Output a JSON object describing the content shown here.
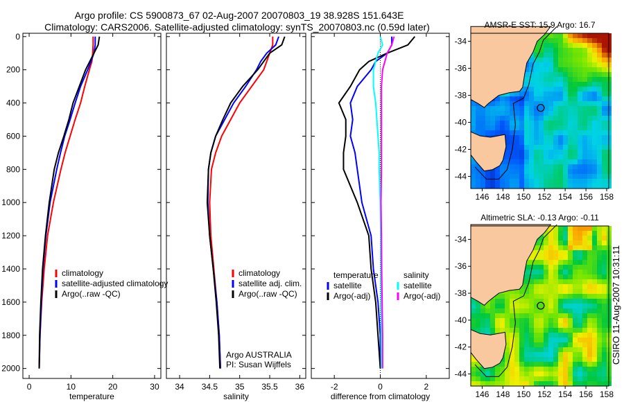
{
  "title_line1": "Argo profile: CS 5900873_67 02-Aug-2007 20070803_19 38.928S 151.643E",
  "title_line2": "Climatology: CARS2006. Satellite-adjusted climatology: synTS_20070803.nc (0.59d later)",
  "footer_stamp": "CSIRO 11-Aug-2007 10:31:11",
  "colors": {
    "climatology": "#ff0000",
    "satellite": "#0000ff",
    "argo": "#000000",
    "sal_satellite": "#00ffff",
    "sal_argo": "#ff00ff",
    "land": "#f9c89f"
  },
  "chart_data": [
    {
      "type": "line",
      "id": "temperature",
      "xlabel": "temperature",
      "ylabel": "",
      "xlim": [
        -1.5,
        31.5
      ],
      "ylim": [
        2060,
        -20
      ],
      "xticks": [
        0,
        10,
        20,
        30
      ],
      "yticks": [
        0,
        200,
        400,
        600,
        800,
        1000,
        1200,
        1400,
        1600,
        1800,
        2000
      ],
      "depth": [
        0,
        50,
        100,
        150,
        200,
        300,
        400,
        500,
        600,
        700,
        800,
        1000,
        1200,
        1400,
        1600,
        1800,
        2000
      ],
      "series": [
        {
          "name": "climatology",
          "color": "#ff0000",
          "values": [
            15.3,
            15.3,
            15.2,
            15.0,
            14.4,
            13.3,
            12.3,
            11.0,
            9.8,
            8.6,
            7.6,
            5.8,
            4.4,
            3.6,
            3.0,
            2.6,
            2.4
          ]
        },
        {
          "name": "satellite-adjusted climatology",
          "color": "#0000ff",
          "values": [
            15.8,
            15.8,
            15.5,
            14.8,
            14.0,
            12.3,
            11.0,
            9.8,
            8.5,
            7.5,
            6.6,
            5.0,
            4.0,
            3.3,
            2.9,
            2.6,
            2.4
          ]
        },
        {
          "name": "Argo(..raw -QC)",
          "color": "#000000",
          "values": [
            16.8,
            16.5,
            15.5,
            14.5,
            13.5,
            12.0,
            10.5,
            9.5,
            8.3,
            7.0,
            6.0,
            4.8,
            3.9,
            3.2,
            2.8,
            2.5,
            2.4
          ]
        }
      ],
      "legend": "center-right"
    },
    {
      "type": "line",
      "id": "salinity",
      "xlabel": "salinity",
      "xlim": [
        33.78,
        36.1
      ],
      "ylim": [
        2060,
        -20
      ],
      "xticks": [
        34,
        34.5,
        35,
        35.5,
        36
      ],
      "yticks": [],
      "depth": [
        0,
        50,
        100,
        150,
        200,
        300,
        400,
        500,
        600,
        700,
        800,
        1000,
        1200,
        1400,
        1600,
        1800,
        2000
      ],
      "series": [
        {
          "name": "climatology",
          "color": "#ff0000",
          "values": [
            35.55,
            35.55,
            35.5,
            35.45,
            35.4,
            35.2,
            35.0,
            34.85,
            34.7,
            34.6,
            34.53,
            34.5,
            34.52,
            34.57,
            34.62,
            34.66,
            34.68
          ]
        },
        {
          "name": "satellite adj. clim.",
          "color": "#0000ff",
          "values": [
            35.65,
            35.6,
            35.45,
            35.35,
            35.28,
            35.1,
            34.9,
            34.75,
            34.6,
            34.52,
            34.48,
            34.47,
            34.5,
            34.56,
            34.62,
            34.66,
            34.68
          ]
        },
        {
          "name": "Argo(..raw -QC)",
          "color": "#000000",
          "values": [
            35.75,
            35.7,
            35.5,
            35.4,
            35.3,
            35.05,
            34.85,
            34.72,
            34.6,
            34.52,
            34.48,
            34.46,
            34.5,
            34.56,
            34.61,
            34.65,
            34.67
          ]
        }
      ],
      "annotation": [
        "Argo AUSTRALIA",
        "PI: Susan Wijffels"
      ],
      "legend": "center-right"
    },
    {
      "type": "line",
      "id": "difference",
      "xlabel": "difference from climatology",
      "xlim": [
        -3,
        3
      ],
      "ylim": [
        2060,
        -20
      ],
      "xticks": [
        -2,
        0,
        2
      ],
      "yticks": [],
      "zero_line": 0,
      "depth": [
        0,
        50,
        100,
        150,
        200,
        300,
        400,
        500,
        600,
        700,
        800,
        1000,
        1200,
        1400,
        1600,
        1800,
        2000
      ],
      "series": [
        {
          "group": "temperature",
          "name": "satellite",
          "color": "#0000ff",
          "values": [
            0.5,
            0.5,
            0.3,
            -0.2,
            -0.4,
            -1.0,
            -1.3,
            -1.2,
            -1.3,
            -1.1,
            -1.0,
            -0.8,
            -0.4,
            -0.3,
            -0.1,
            0,
            0
          ]
        },
        {
          "group": "temperature",
          "name": "Argo(-adj)",
          "color": "#000000",
          "values": [
            1.5,
            1.2,
            0.3,
            -0.5,
            -0.9,
            -1.3,
            -1.8,
            -1.5,
            -1.5,
            -1.6,
            -1.6,
            -1.0,
            -0.5,
            -0.4,
            -0.2,
            -0.1,
            0
          ]
        },
        {
          "group": "salinity",
          "name": "satellite",
          "color": "#00ffff",
          "values": [
            0,
            0.1,
            -0.1,
            -0.2,
            -0.3,
            -0.3,
            -0.2,
            -0.15,
            -0.1,
            -0.05,
            -0.05,
            0,
            0.02,
            0.03,
            0.04,
            0.04,
            0.05
          ]
        },
        {
          "group": "salinity",
          "name": "Argo(-adj)",
          "color": "#ff00ff",
          "values": [
            0.6,
            0.5,
            0.3,
            0.2,
            0.1,
            0.05,
            0.05,
            0.05,
            0.05,
            0.05,
            0.05,
            0.03,
            0.05,
            0.06,
            0.08,
            0.1,
            0.1
          ]
        }
      ],
      "legend_headers": [
        "temperature",
        "salinity"
      ]
    },
    {
      "type": "heatmap",
      "id": "sst_map",
      "title": "AMSR-E SST: 15.9 Argo: 16.7",
      "xlim": [
        144.9,
        158.2
      ],
      "ylim": [
        -44.9,
        -33.4
      ],
      "xticks": [
        146,
        148,
        150,
        152,
        154,
        156,
        158
      ],
      "yticks": [
        -34,
        -36,
        -38,
        -40,
        -42,
        -44
      ],
      "marker": {
        "lon": 151.643,
        "lat": -38.928
      }
    },
    {
      "type": "heatmap",
      "id": "sla_map",
      "title": "Altimetric SLA: -0.13 Argo: -0.11",
      "xlim": [
        144.9,
        158.2
      ],
      "ylim": [
        -44.9,
        -33.0
      ],
      "xticks": [
        146,
        148,
        150,
        152,
        154,
        156,
        158
      ],
      "yticks": [
        -34,
        -36,
        -38,
        -40,
        -42,
        -44
      ],
      "marker": {
        "lon": 151.643,
        "lat": -38.928
      }
    }
  ]
}
